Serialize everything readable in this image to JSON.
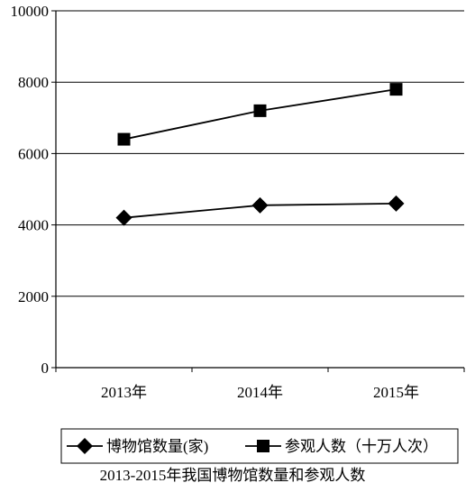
{
  "chart_data": {
    "type": "line",
    "categories": [
      "2013年",
      "2014年",
      "2015年"
    ],
    "ylim": [
      0,
      10000
    ],
    "yticks": [
      "0",
      "2000",
      "4000",
      "6000",
      "8000",
      "10000"
    ],
    "grid": true,
    "legend_position": "bottom",
    "series": [
      {
        "name": "博物馆数量(家)",
        "values": [
          4200,
          4550,
          4600
        ],
        "marker": "diamond",
        "color": "#000000"
      },
      {
        "name": "参观人数（十万人次）",
        "values": [
          6400,
          7200,
          7800
        ],
        "marker": "square",
        "color": "#000000"
      }
    ],
    "caption": "2013-2015年我国博物馆数量和参观人数"
  }
}
